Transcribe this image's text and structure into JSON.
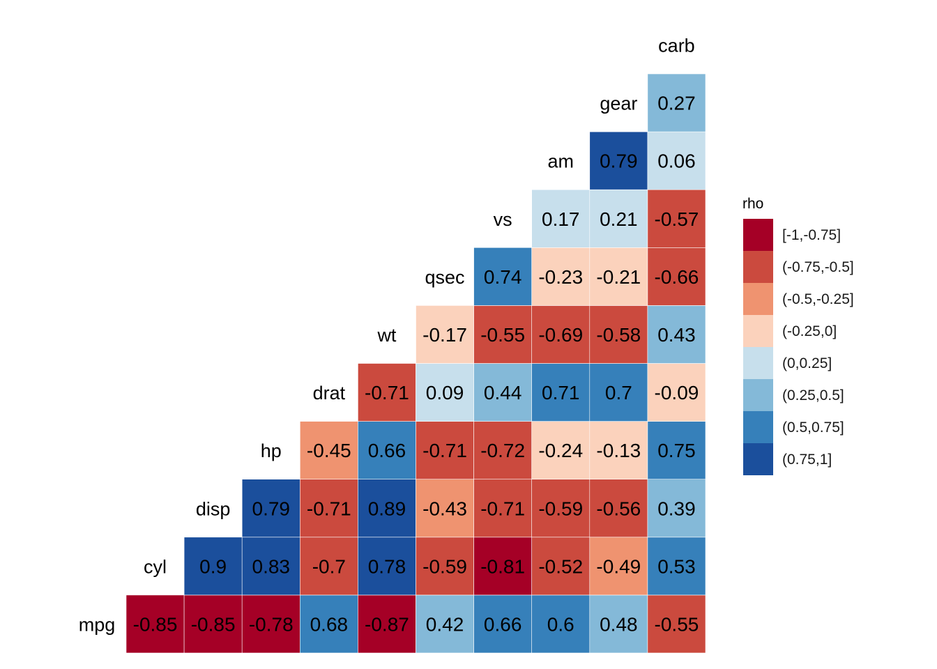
{
  "chart_data": {
    "type": "heatmap",
    "title": "",
    "row_labels": [
      "mpg",
      "cyl",
      "disp",
      "hp",
      "drat",
      "wt",
      "qsec",
      "vs",
      "am",
      "gear"
    ],
    "column_labels": [
      "cyl",
      "disp",
      "hp",
      "drat",
      "wt",
      "qsec",
      "vs",
      "am",
      "gear",
      "carb"
    ],
    "diagonal_labels": [
      "mpg",
      "cyl",
      "disp",
      "hp",
      "drat",
      "wt",
      "qsec",
      "vs",
      "am",
      "gear",
      "carb"
    ],
    "rows": [
      [
        -0.85,
        -0.85,
        -0.78,
        0.68,
        -0.87,
        0.42,
        0.66,
        0.6,
        0.48,
        -0.55
      ],
      [
        0.9,
        0.83,
        -0.7,
        0.78,
        -0.59,
        -0.81,
        -0.52,
        -0.49,
        0.53
      ],
      [
        0.79,
        -0.71,
        0.89,
        -0.43,
        -0.71,
        -0.59,
        -0.56,
        0.39
      ],
      [
        -0.45,
        0.66,
        -0.71,
        -0.72,
        -0.24,
        -0.13,
        0.75
      ],
      [
        -0.71,
        0.09,
        0.44,
        0.71,
        0.7,
        -0.09
      ],
      [
        -0.17,
        -0.55,
        -0.69,
        -0.58,
        0.43
      ],
      [
        0.74,
        -0.23,
        -0.21,
        -0.66
      ],
      [
        0.17,
        0.21,
        -0.57
      ],
      [
        0.79,
        0.06
      ],
      [
        0.27
      ]
    ],
    "legend": {
      "title": "rho",
      "placement": "right",
      "bins": [
        {
          "label": "[-1,-0.75]",
          "min": -1,
          "max": -0.75,
          "color": "#A50026"
        },
        {
          "label": "(-0.75,-0.5]",
          "min": -0.75,
          "max": -0.5,
          "color": "#CB4A3E"
        },
        {
          "label": "(-0.5,-0.25]",
          "min": -0.5,
          "max": -0.25,
          "color": "#EF9370"
        },
        {
          "label": "(-0.25,0]",
          "min": -0.25,
          "max": 0,
          "color": "#FBD2BC"
        },
        {
          "label": "(0,0.25]",
          "min": 0,
          "max": 0.25,
          "color": "#C7DFEC"
        },
        {
          "label": "(0.25,0.5]",
          "min": 0.25,
          "max": 0.5,
          "color": "#84B9D8"
        },
        {
          "label": "(0.5,0.75]",
          "min": 0.5,
          "max": 0.75,
          "color": "#3680BA"
        },
        {
          "label": "(0.75,1]",
          "min": 0.75,
          "max": 1,
          "color": "#1B4F9C"
        }
      ]
    }
  }
}
